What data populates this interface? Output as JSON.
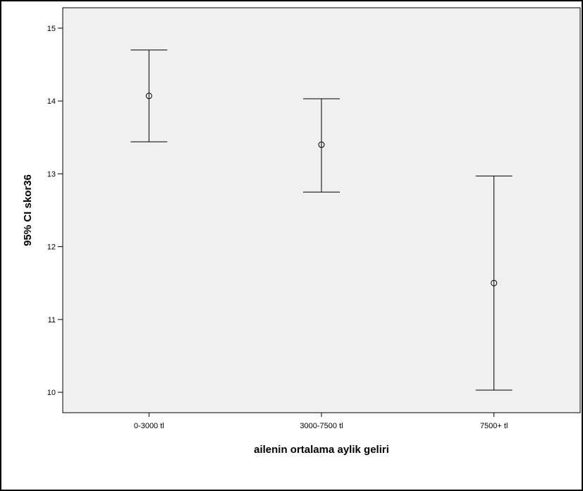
{
  "chart_data": {
    "type": "errorbar",
    "xlabel": "ailenin ortalama aylik geliri",
    "ylabel": "95% CI skor36",
    "categories": [
      "0-3000 tl",
      "3000-7500 tl",
      "7500+ tl"
    ],
    "series": [
      {
        "mean": [
          14.07,
          13.4,
          11.5
        ],
        "ci_lower": [
          13.44,
          12.75,
          10.03
        ],
        "ci_upper": [
          14.7,
          14.03,
          12.97
        ]
      }
    ],
    "ylim": [
      9.72,
      15.28
    ],
    "yticks": [
      10,
      11,
      12,
      13,
      14,
      15
    ],
    "grid": false,
    "legend": "none",
    "colors": {
      "plot_background": "#f0f0f0",
      "marks": "#000000"
    }
  }
}
